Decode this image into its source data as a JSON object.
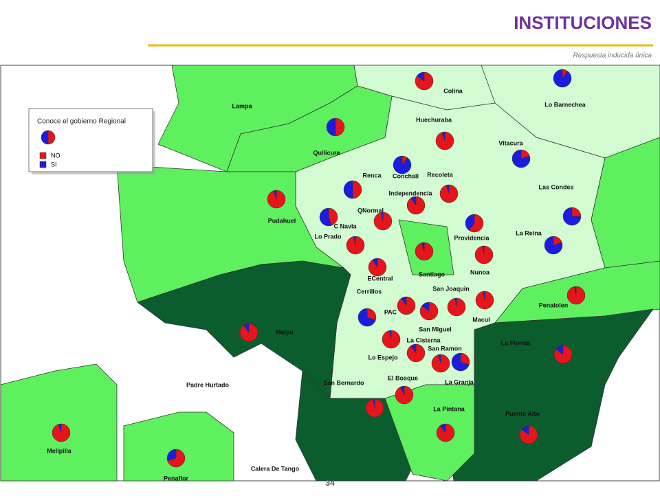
{
  "header": {
    "title": "INSTITUCIONES",
    "subtitle": "Respuesta inducida única"
  },
  "legend": {
    "title": "Conoce el gobierno Regional",
    "items": [
      {
        "label": "NO",
        "color": "#e8141b"
      },
      {
        "label": "SI",
        "color": "#1c1ce0"
      }
    ]
  },
  "comunas": [
    {
      "name": "Colina",
      "no": 85,
      "si": 15
    },
    {
      "name": "Lo Barnechea",
      "no": 10,
      "si": 90
    },
    {
      "name": "Quilicura",
      "no": 50,
      "si": 50
    },
    {
      "name": "Huechuraba",
      "no": 95,
      "si": 5
    },
    {
      "name": "Vitacura",
      "no": 20,
      "si": 80
    },
    {
      "name": "Conchali",
      "no": 10,
      "si": 90
    },
    {
      "name": "Renca",
      "no": 50,
      "si": 50
    },
    {
      "name": "Recoleta",
      "no": 95,
      "si": 5
    },
    {
      "name": "Pudahuel",
      "no": 95,
      "si": 5
    },
    {
      "name": "Independencia",
      "no": 90,
      "si": 10
    },
    {
      "name": "Las Condes",
      "no": 25,
      "si": 75
    },
    {
      "name": "QNormal",
      "no": 97,
      "si": 3
    },
    {
      "name": "C Navia",
      "no": 45,
      "si": 55
    },
    {
      "name": "Providencia",
      "no": 60,
      "si": 40
    },
    {
      "name": "La Reina",
      "no": 20,
      "si": 80
    },
    {
      "name": "Lo Prado",
      "no": 97,
      "si": 3
    },
    {
      "name": "Santiago",
      "no": 95,
      "si": 5
    },
    {
      "name": "Nunoa",
      "no": 97,
      "si": 3
    },
    {
      "name": "ECentral",
      "no": 90,
      "si": 10
    },
    {
      "name": "Penalolen",
      "no": 97,
      "si": 3
    },
    {
      "name": "San Joaquin",
      "no": 97,
      "si": 3
    },
    {
      "name": "Macul",
      "no": 97,
      "si": 3
    },
    {
      "name": "Cerrillos",
      "no": 30,
      "si": 70
    },
    {
      "name": "PAC",
      "no": 90,
      "si": 10
    },
    {
      "name": "San Miguel",
      "no": 85,
      "si": 15
    },
    {
      "name": "Maipu",
      "no": 90,
      "si": 10
    },
    {
      "name": "Lo Espejo",
      "no": 97,
      "si": 3
    },
    {
      "name": "La Cisterna",
      "no": 90,
      "si": 10
    },
    {
      "name": "San Ramon",
      "no": 95,
      "si": 5
    },
    {
      "name": "La Granja",
      "no": 30,
      "si": 70
    },
    {
      "name": "La Florida",
      "no": 85,
      "si": 15
    },
    {
      "name": "El Bosque",
      "no": 92,
      "si": 8
    },
    {
      "name": "San Bernardo",
      "no": 97,
      "si": 3
    },
    {
      "name": "La Pintana",
      "no": 90,
      "si": 10
    },
    {
      "name": "Puente Alto",
      "no": 85,
      "si": 15
    },
    {
      "name": "Melipilla",
      "no": 95,
      "si": 5
    },
    {
      "name": "Penaflor",
      "no": 70,
      "si": 30
    }
  ],
  "places": [
    "Lampa",
    "Padre Hurtado",
    "Calera De Tango"
  ],
  "page_number": "34"
}
